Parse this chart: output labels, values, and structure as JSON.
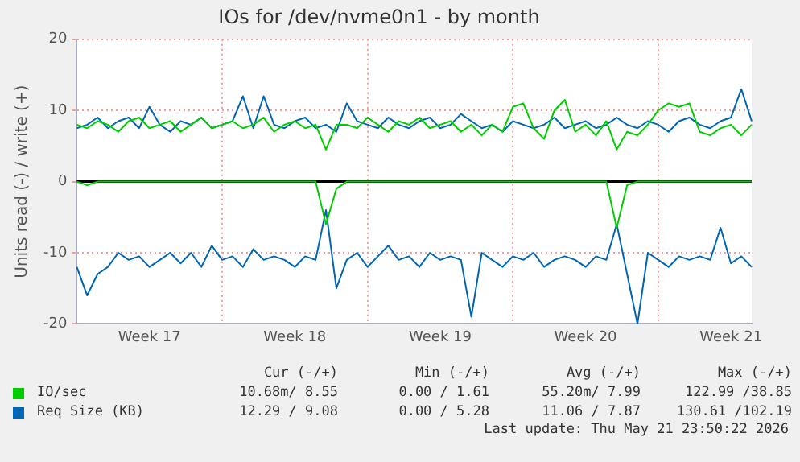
{
  "chart_data": {
    "type": "line",
    "title": "IOs for /dev/nvme0n1 - by month",
    "ylabel": "Units read (-) / write (+)",
    "categories": [
      null,
      null,
      null,
      null,
      null,
      null,
      null,
      "Week 17",
      null,
      null,
      null,
      null,
      null,
      null,
      null,
      null,
      null,
      null,
      null,
      null,
      null,
      "Week 18",
      null,
      null,
      null,
      null,
      null,
      null,
      null,
      null,
      null,
      null,
      null,
      null,
      null,
      "Week 19",
      null,
      null,
      null,
      null,
      null,
      null,
      null,
      null,
      null,
      null,
      null,
      null,
      null,
      "Week 20",
      null,
      null,
      null,
      null,
      null,
      null,
      null,
      null,
      null,
      null,
      null,
      null,
      null,
      "Week 21",
      null,
      null
    ],
    "ref_lines": [
      {
        "axis": "y",
        "value": 0,
        "color": "#000000"
      }
    ],
    "ylim": [
      -20,
      20
    ],
    "yticks": [
      -20,
      -10,
      0,
      10,
      20
    ],
    "grid": true,
    "legend": "bottom",
    "series": [
      {
        "color": "#00cc00",
        "values": [
          0,
          -0.5,
          0,
          0,
          0,
          0,
          0,
          0,
          0,
          0,
          0,
          0,
          0,
          0,
          0,
          0,
          0,
          0,
          0,
          0,
          0,
          0,
          0,
          0,
          -6,
          -1,
          0,
          0,
          0,
          0,
          0,
          0,
          0,
          0,
          0,
          0,
          0,
          0,
          0,
          0,
          0,
          0,
          0,
          0,
          0,
          0,
          0,
          0,
          0,
          0,
          0,
          0,
          -6.5,
          -0.5,
          0,
          0,
          0,
          0,
          0,
          0,
          0,
          0,
          0,
          0,
          0,
          0
        ]
      },
      {
        "name": "IO/sec",
        "color": "#00cc00",
        "values": [
          8,
          7.5,
          8.5,
          8,
          7,
          8.5,
          9,
          7.5,
          8,
          8.5,
          7,
          8,
          9,
          7.5,
          8,
          8.5,
          7.5,
          8,
          9,
          7,
          8,
          8.5,
          7.5,
          8,
          4.5,
          8,
          8,
          7.5,
          9,
          8,
          7,
          8.5,
          8,
          9,
          7.5,
          8,
          8.5,
          7,
          8,
          6.5,
          8,
          7,
          10.5,
          11,
          7.5,
          6,
          10,
          11.5,
          7,
          8,
          6.5,
          8.5,
          4.5,
          7,
          6.5,
          8,
          10,
          11,
          10.5,
          11,
          7,
          6.5,
          7.5,
          8,
          6.5,
          8
        ]
      },
      {
        "color": "#0066b3",
        "values": [
          -12,
          -16,
          -13,
          -12,
          -10,
          -11,
          -10.5,
          -12,
          -11,
          -10,
          -11.5,
          -10,
          -12,
          -9,
          -11,
          -10.5,
          -12,
          -9.5,
          -11,
          -10.5,
          -11,
          -12,
          -10.5,
          -11,
          -4,
          -15,
          -11,
          -10,
          -12,
          -10.5,
          -9,
          -11,
          -10.5,
          -12,
          -10,
          -11,
          -10.5,
          -11,
          -19,
          -10,
          -11,
          -12,
          -10.5,
          -11,
          -10,
          -12,
          -11,
          -10.5,
          -11,
          -12,
          -10.5,
          -11,
          -6,
          -13,
          -20,
          -10,
          -11,
          -12,
          -10.5,
          -11,
          -10.5,
          -11,
          -6.5,
          -11.5,
          -10.5,
          -12
        ]
      },
      {
        "name": "Req Size (KB)",
        "color": "#0066b3",
        "values": [
          7.5,
          8,
          9,
          7.5,
          8.5,
          9,
          7.5,
          10.5,
          8,
          7,
          8.5,
          8,
          9,
          7.5,
          8,
          8.5,
          12,
          7.5,
          12,
          8,
          7.5,
          8.5,
          9,
          7.5,
          8,
          7,
          11,
          8.5,
          8,
          7.5,
          9,
          8,
          7.5,
          8.5,
          9,
          7.5,
          8,
          9.5,
          8.5,
          7.5,
          8,
          7,
          8.5,
          8,
          7.5,
          8,
          9,
          7.5,
          8,
          8.5,
          7.5,
          8,
          9,
          8,
          7.5,
          8.5,
          8,
          7,
          8.5,
          9,
          8,
          7.5,
          8.5,
          9,
          13,
          8.5
        ]
      }
    ],
    "annotations": [
      "Cur (-/+)",
      "Min (-/+)",
      "Avg (-/+)",
      "Max (-/+)",
      "10.68m/ 8.55",
      "0.00 / 1.61",
      "55.20m/ 7.99",
      "122.99 /38.85",
      "12.29 / 9.08",
      "0.00 / 5.28",
      "11.06 / 7.87",
      "130.61 /102.19",
      "Last update: Thu May 21 23:50:22 2026"
    ]
  }
}
